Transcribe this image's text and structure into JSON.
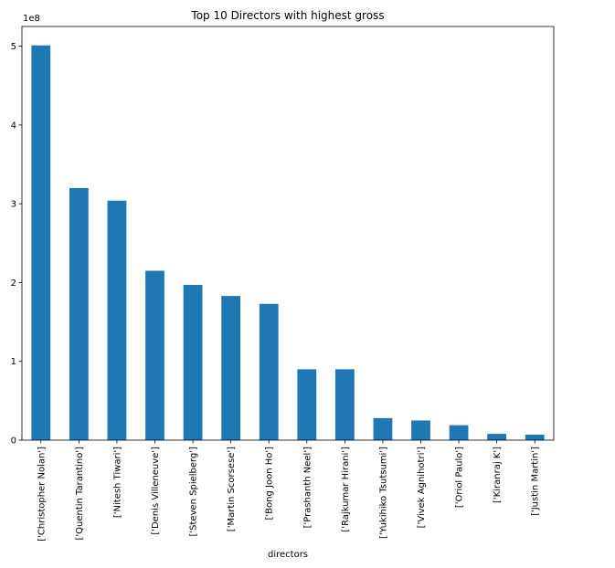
{
  "chart_data": {
    "type": "bar",
    "title": "Top 10 Directors with highest gross",
    "xlabel": "directors",
    "ylabel": "",
    "offset_text": "1e8",
    "y_scale": 100000000,
    "ylim": [
      0,
      5.25
    ],
    "yticks": [
      {
        "value": 0,
        "label": "0"
      },
      {
        "value": 1,
        "label": "1"
      },
      {
        "value": 2,
        "label": "2"
      },
      {
        "value": 3,
        "label": "3"
      },
      {
        "value": 4,
        "label": "4"
      },
      {
        "value": 5,
        "label": "5"
      }
    ],
    "categories": [
      "['Christopher Nolan']",
      "['Quentin Tarantino']",
      "['Nitesh Tiwari']",
      "['Denis Villeneuve']",
      "['Steven Spielberg']",
      "['Martin Scorsese']",
      "['Bong Joon Ho']",
      "['Prashanth Neel']",
      "['Rajkumar Hirani']",
      "['Yukihiko Tsutsumi']",
      "['Vivek Agnihotri']",
      "['Oriol Paulo']",
      "['Kiranraj K']",
      "['Justin Martin']"
    ],
    "values": [
      5.01,
      3.2,
      3.04,
      2.15,
      1.97,
      1.83,
      1.73,
      0.9,
      0.9,
      0.28,
      0.25,
      0.19,
      0.08,
      0.07
    ],
    "grid": false,
    "legend": "none",
    "bar_color": "#1f77b4"
  }
}
